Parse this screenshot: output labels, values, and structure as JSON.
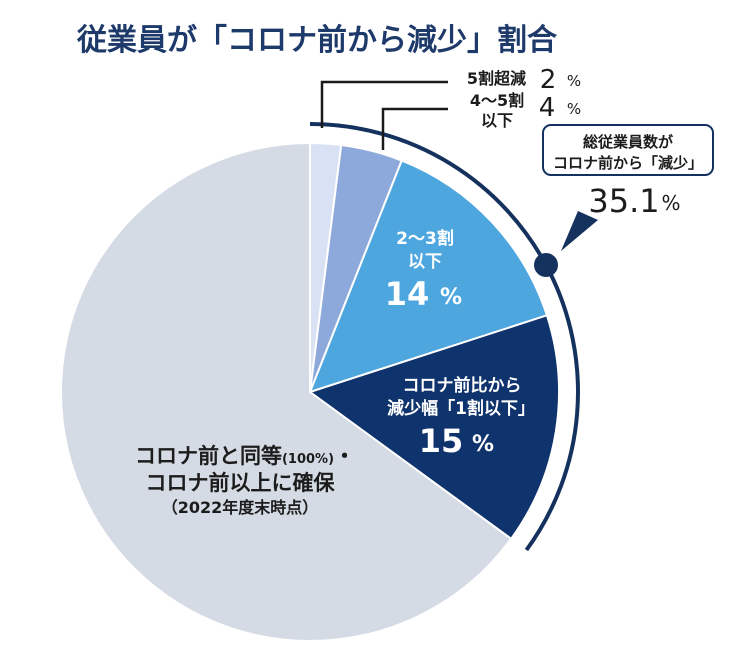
{
  "chart_data": {
    "type": "pie",
    "title": "従業員が「コロナ前から減少」割合",
    "unit": "%",
    "accent_color": "#15325f",
    "slices": [
      {
        "label_lines": [
          "5割超減"
        ],
        "value": 2,
        "color": "#d9e2f4"
      },
      {
        "label_lines": [
          "4～5割",
          "以下"
        ],
        "value": 4,
        "color": "#8da9dc"
      },
      {
        "label_lines": [
          "2～3割",
          "以下"
        ],
        "value": 14,
        "color": "#4ea6df"
      },
      {
        "label_lines": [
          "コロナ前比から",
          "減少幅「1割以下」"
        ],
        "value": 15,
        "color": "#0f336d"
      },
      {
        "label_lines": [
          "コロナ前と同等",
          "コロナ前以上に確保"
        ],
        "label_sub": "(100%)",
        "label_mark": "・",
        "note": "（2022年度末時点）",
        "value": 64.9,
        "color": "#d5dbe5"
      }
    ],
    "callout": {
      "lines": [
        "総従業員数が",
        "コロナ前から「減少」"
      ],
      "value": 35.1
    }
  }
}
